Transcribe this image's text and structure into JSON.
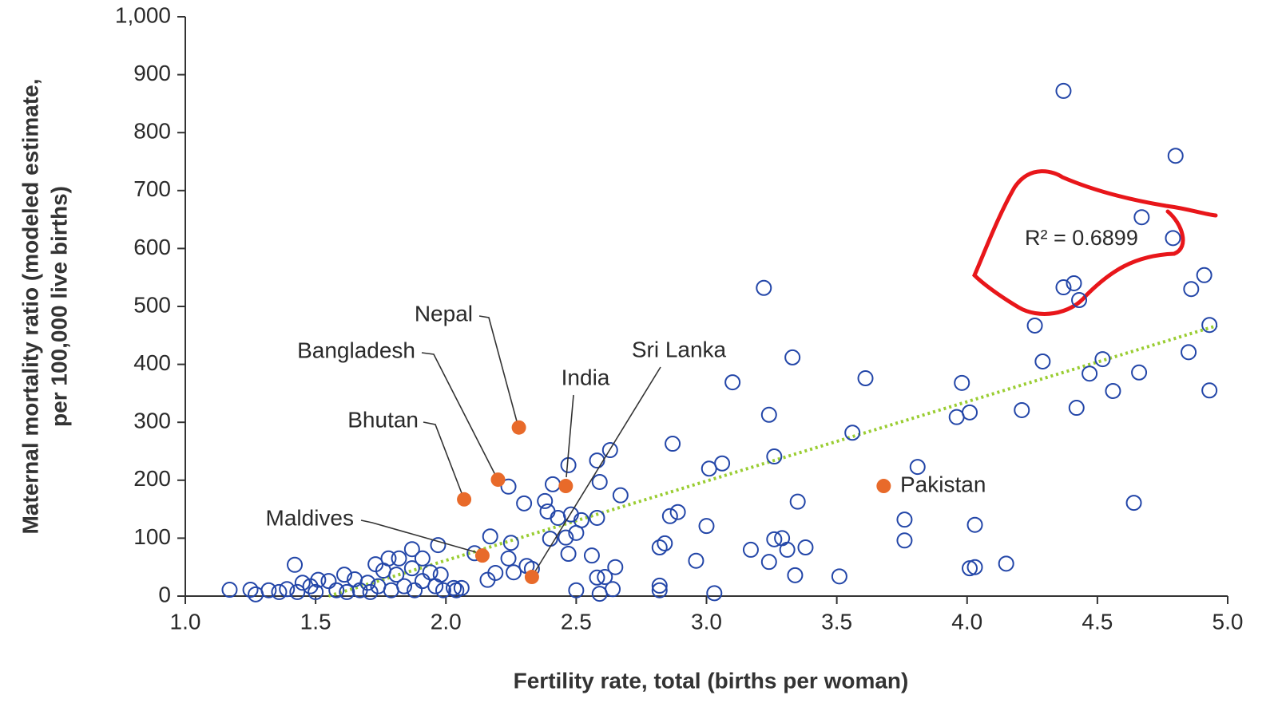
{
  "chart_data": {
    "type": "scatter",
    "xlabel": "Fertility rate, total (births per woman)",
    "ylabel": [
      "Maternal mortality ratio (modeled estimate,",
      "per 100,000 live births)"
    ],
    "annotation": "R² = 0.6899",
    "xlim": [
      1,
      5
    ],
    "ylim": [
      0,
      1000
    ],
    "xticks": [
      {
        "value": 1,
        "label": "1.0"
      },
      {
        "value": 1.5,
        "label": "1.5"
      },
      {
        "value": 2,
        "label": "2.0"
      },
      {
        "value": 2.5,
        "label": "2.5"
      },
      {
        "value": 3,
        "label": "3.0"
      },
      {
        "value": 3.5,
        "label": "3.5"
      },
      {
        "value": 4,
        "label": "4.0"
      },
      {
        "value": 4.5,
        "label": "4.5"
      },
      {
        "value": 5,
        "label": "5.0"
      }
    ],
    "yticks": [
      0,
      100,
      200,
      300,
      400,
      500,
      600,
      700,
      800,
      900,
      {
        "value": 1000,
        "label": "1,000"
      }
    ],
    "trendline": {
      "color": "#9acd32",
      "x": [
        1.55,
        4.96
      ],
      "values": [
        0,
        467
      ]
    },
    "series": [
      {
        "color": "#2346a8",
        "filled": false,
        "x": [
          4.37,
          4.8,
          4.67,
          4.79,
          4.91,
          4.37,
          4.41,
          4.43,
          4.86,
          4.26,
          4.93,
          4.29,
          4.52,
          4.47,
          4.85,
          4.66,
          4.56,
          4.93,
          4.42,
          4.21,
          4.01,
          3.96,
          3.98,
          4.64,
          4.15,
          4.01,
          4.03,
          4.03,
          3.81,
          3.76,
          3.76,
          3.51,
          3.56,
          3.61,
          3.22,
          3.33,
          3.1,
          3.24,
          3.26,
          3.06,
          3.01,
          2.87,
          3.0,
          2.89,
          2.86,
          3.35,
          3.17,
          3.29,
          3.26,
          3.31,
          3.38,
          3.24,
          3.34,
          2.96,
          3.03,
          2.84,
          2.82,
          2.82,
          2.82,
          2.63,
          2.58,
          2.59,
          2.47,
          2.41,
          2.38,
          2.39,
          2.3,
          2.24,
          2.67,
          2.48,
          2.58,
          2.52,
          2.43,
          2.5,
          2.46,
          2.4,
          2.25,
          2.17,
          2.47,
          2.56,
          2.65,
          2.58,
          2.61,
          2.64,
          2.59,
          2.5,
          2.31,
          2.33,
          2.26,
          2.24,
          2.19,
          2.16,
          2.11,
          1.97,
          2.03,
          2.06,
          1.17,
          1.25,
          1.27,
          1.32,
          1.42,
          1.45,
          1.48,
          1.51,
          1.55,
          1.61,
          1.65,
          1.73,
          1.78,
          1.82,
          1.87,
          1.91,
          1.94,
          1.98,
          1.7,
          1.74,
          1.79,
          1.84,
          1.88,
          1.91,
          1.96,
          1.99,
          2.04,
          1.36,
          1.39,
          1.43,
          1.5,
          1.58,
          1.62,
          1.67,
          1.71,
          1.87,
          1.81,
          1.76
        ],
        "values": [
          872,
          760,
          654,
          618,
          554,
          533,
          540,
          511,
          530,
          467,
          468,
          405,
          409,
          384,
          421,
          386,
          354,
          355,
          325,
          321,
          317,
          309,
          368,
          161,
          56,
          48,
          50,
          123,
          223,
          132,
          96,
          34,
          282,
          376,
          532,
          412,
          369,
          313,
          241,
          229,
          220,
          263,
          121,
          145,
          138,
          163,
          80,
          100,
          98,
          80,
          84,
          59,
          36,
          61,
          5,
          91,
          84,
          18,
          10,
          252,
          234,
          197,
          226,
          193,
          164,
          146,
          160,
          189,
          174,
          141,
          135,
          131,
          135,
          109,
          101,
          99,
          92,
          103,
          73,
          70,
          50,
          32,
          33,
          12,
          4,
          10,
          52,
          47,
          41,
          65,
          40,
          28,
          74,
          88,
          14,
          14,
          11,
          11,
          3,
          10,
          54,
          23,
          17,
          28,
          26,
          37,
          29,
          55,
          65,
          65,
          81,
          65,
          41,
          37,
          23,
          17,
          10,
          17,
          10,
          26,
          17,
          10,
          10,
          7,
          12,
          7,
          7,
          10,
          7,
          10,
          7,
          48,
          37,
          44
        ]
      },
      {
        "color": "#e86a2a",
        "filled": true,
        "x": [
          2.28,
          2.2,
          2.46,
          2.07,
          2.14,
          2.33,
          3.68
        ],
        "values": [
          291,
          201,
          190,
          167,
          70,
          33,
          190
        ],
        "labels": [
          "Nepal",
          "Bangladesh",
          "India",
          "Bhutan",
          "Maldives",
          "Sri Lanka",
          "Pakistan"
        ]
      }
    ]
  }
}
